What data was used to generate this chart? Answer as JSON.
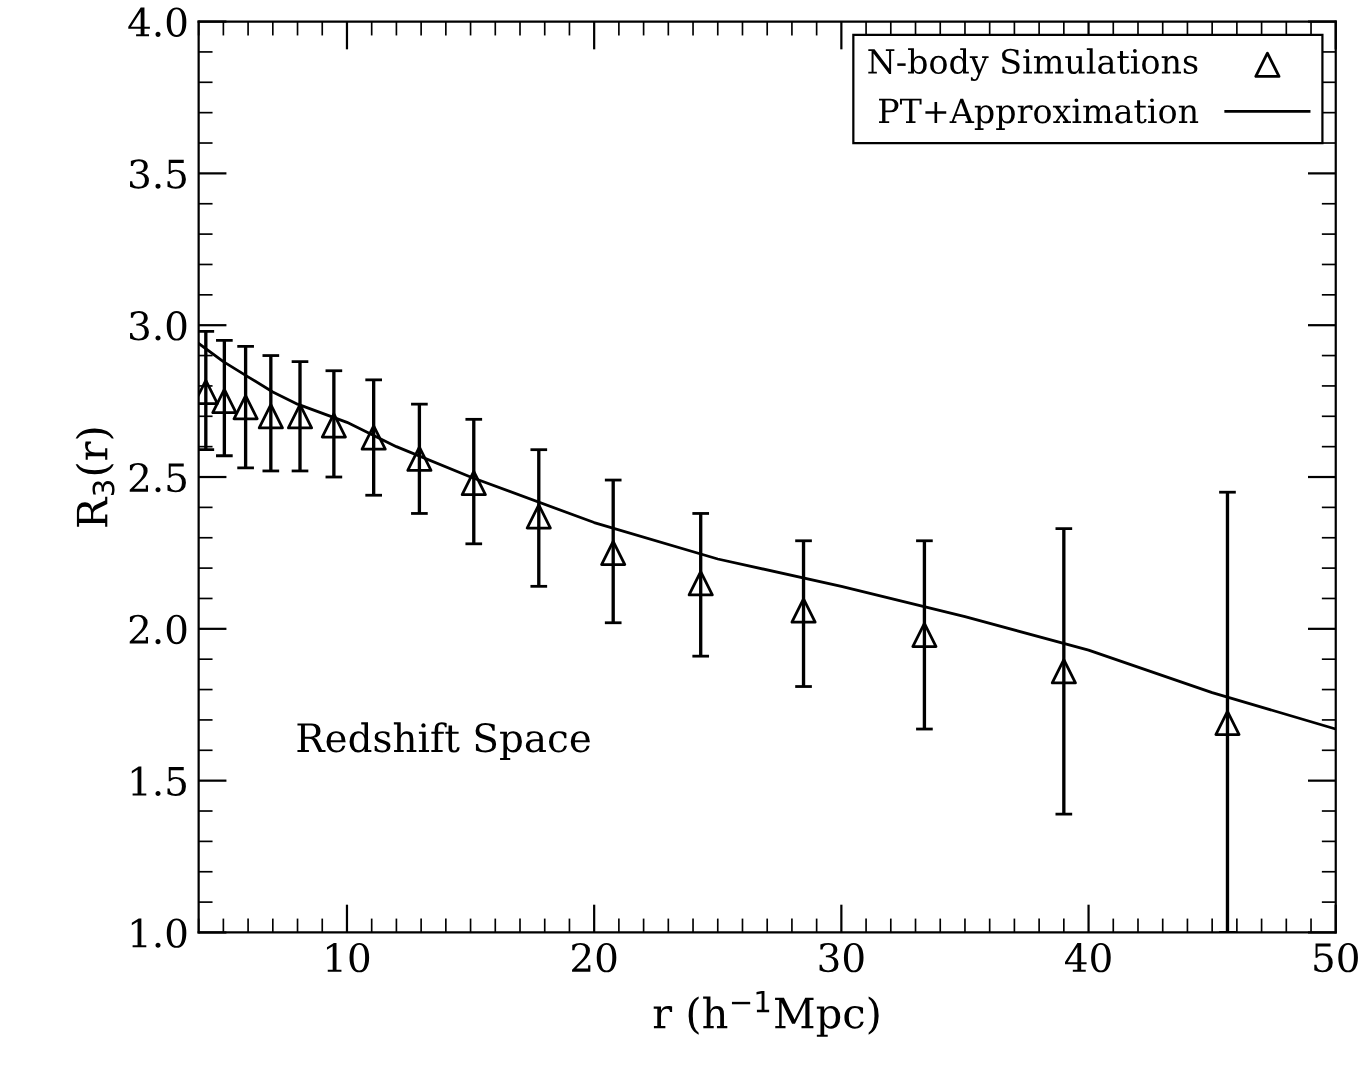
{
  "chart_data": {
    "type": "scatter",
    "xlabel": "r (h$^{−1}$Mpc)",
    "ylabel": "R$_{3}$(r)",
    "xlim": [
      4,
      50
    ],
    "ylim": [
      1,
      4
    ],
    "xticks": [
      10,
      20,
      30,
      40,
      50,
      {
        "value": 4,
        "label": null
      },
      {
        "value": 5,
        "label": null
      },
      {
        "value": 6,
        "label": null
      },
      {
        "value": 7,
        "label": null
      },
      {
        "value": 8,
        "label": null
      },
      {
        "value": 9,
        "label": null
      },
      {
        "value": 11,
        "label": null
      },
      {
        "value": 12,
        "label": null
      },
      {
        "value": 13,
        "label": null
      },
      {
        "value": 14,
        "label": null
      },
      {
        "value": 15,
        "label": null
      },
      {
        "value": 16,
        "label": null
      },
      {
        "value": 17,
        "label": null
      },
      {
        "value": 18,
        "label": null
      },
      {
        "value": 19,
        "label": null
      },
      {
        "value": 21,
        "label": null
      },
      {
        "value": 22,
        "label": null
      },
      {
        "value": 23,
        "label": null
      },
      {
        "value": 24,
        "label": null
      },
      {
        "value": 25,
        "label": null
      },
      {
        "value": 26,
        "label": null
      },
      {
        "value": 27,
        "label": null
      },
      {
        "value": 28,
        "label": null
      },
      {
        "value": 29,
        "label": null
      },
      {
        "value": 31,
        "label": null
      },
      {
        "value": 32,
        "label": null
      },
      {
        "value": 33,
        "label": null
      },
      {
        "value": 34,
        "label": null
      },
      {
        "value": 35,
        "label": null
      },
      {
        "value": 36,
        "label": null
      },
      {
        "value": 37,
        "label": null
      },
      {
        "value": 38,
        "label": null
      },
      {
        "value": 39,
        "label": null
      },
      {
        "value": 41,
        "label": null
      },
      {
        "value": 42,
        "label": null
      },
      {
        "value": 43,
        "label": null
      },
      {
        "value": 44,
        "label": null
      },
      {
        "value": 45,
        "label": null
      },
      {
        "value": 46,
        "label": null
      },
      {
        "value": 47,
        "label": null
      },
      {
        "value": 48,
        "label": null
      },
      {
        "value": 49,
        "label": null
      }
    ],
    "yticks": [
      {
        "value": 1.0,
        "label": "1.0"
      },
      1.5,
      {
        "value": 2.0,
        "label": "2.0"
      },
      2.5,
      {
        "value": 3.0,
        "label": "3.0"
      },
      3.5,
      {
        "value": 4.0,
        "label": "4.0"
      },
      {
        "value": 1.1,
        "label": null
      },
      {
        "value": 1.2,
        "label": null
      },
      {
        "value": 1.3,
        "label": null
      },
      {
        "value": 1.4,
        "label": null
      },
      {
        "value": 1.6,
        "label": null
      },
      {
        "value": 1.7,
        "label": null
      },
      {
        "value": 1.8,
        "label": null
      },
      {
        "value": 1.9,
        "label": null
      },
      {
        "value": 2.1,
        "label": null
      },
      {
        "value": 2.2,
        "label": null
      },
      {
        "value": 2.3,
        "label": null
      },
      {
        "value": 2.4,
        "label": null
      },
      {
        "value": 2.6,
        "label": null
      },
      {
        "value": 2.7,
        "label": null
      },
      {
        "value": 2.8,
        "label": null
      },
      {
        "value": 2.9,
        "label": null
      },
      {
        "value": 3.1,
        "label": null
      },
      {
        "value": 3.2,
        "label": null
      },
      {
        "value": 3.3,
        "label": null
      },
      {
        "value": 3.4,
        "label": null
      },
      {
        "value": 3.6,
        "label": null
      },
      {
        "value": 3.7,
        "label": null
      },
      {
        "value": 3.8,
        "label": null
      },
      {
        "value": 3.9,
        "label": null
      }
    ],
    "grid": false,
    "legend": "top right",
    "annotations": [
      "Redshift Space"
    ],
    "series": [
      {
        "name": "N-body Simulations",
        "marker": "triangle",
        "color": "#000000",
        "x": [
          4.29,
          5.04,
          5.9,
          6.92,
          8.1,
          9.47,
          11.08,
          12.93,
          15.13,
          17.76,
          20.77,
          24.31,
          28.47,
          33.36,
          39.0,
          45.62
        ],
        "values": [
          2.78,
          2.75,
          2.73,
          2.7,
          2.7,
          2.67,
          2.63,
          2.56,
          2.48,
          2.37,
          2.25,
          2.15,
          2.06,
          1.98,
          1.86,
          1.69
        ],
        "errors": [
          [
            2.59,
            2.98
          ],
          [
            2.57,
            2.95
          ],
          [
            2.53,
            2.93
          ],
          [
            2.52,
            2.9
          ],
          [
            2.52,
            2.88
          ],
          [
            2.5,
            2.85
          ],
          [
            2.44,
            2.82
          ],
          [
            2.38,
            2.74
          ],
          [
            2.28,
            2.69
          ],
          [
            2.14,
            2.59
          ],
          [
            2.02,
            2.49
          ],
          [
            1.91,
            2.38
          ],
          [
            1.81,
            2.29
          ],
          [
            1.67,
            2.29
          ],
          [
            1.39,
            2.33
          ],
          [
            1.0,
            2.45
          ]
        ]
      },
      {
        "name": "PT+Approximation",
        "type": "line",
        "line_style": "solid",
        "marker": "none",
        "color": "#000000",
        "x": [
          4,
          5,
          6,
          7,
          8,
          10,
          12,
          15,
          20,
          25,
          30,
          35,
          40,
          45,
          50
        ],
        "values": [
          2.94,
          2.88,
          2.83,
          2.78,
          2.74,
          2.68,
          2.6,
          2.5,
          2.35,
          2.23,
          2.14,
          2.04,
          1.93,
          1.79,
          1.67
        ]
      }
    ]
  }
}
